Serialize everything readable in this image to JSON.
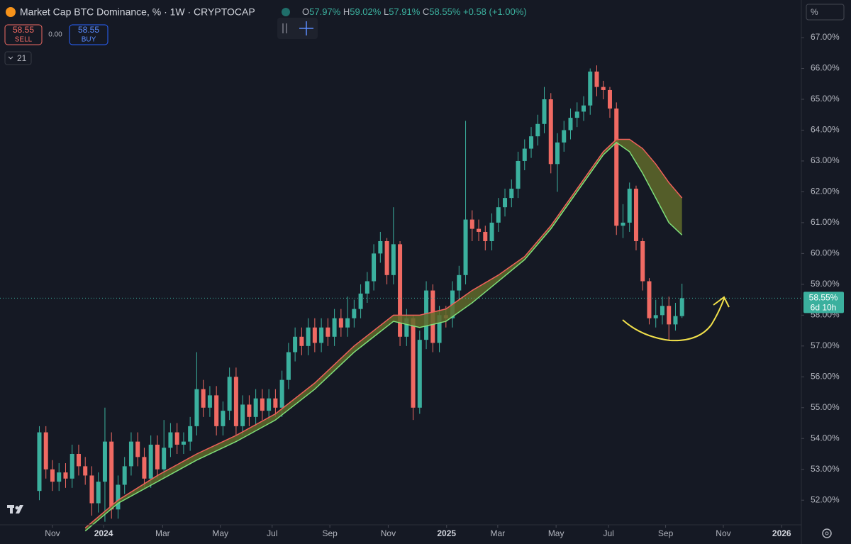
{
  "header": {
    "title": "Market Cap BTC Dominance, % · 1W · CRYPTOCAP",
    "ohlc_letters": [
      "O",
      "H",
      "L",
      "C"
    ],
    "ohlc_values": [
      "57.97%",
      "59.02%",
      "57.91%",
      "58.55%"
    ],
    "change": "+0.58 (+1.00%)"
  },
  "trade": {
    "sell_price": "58.55",
    "sell": "SELL",
    "spread": "0.00",
    "buy_price": "58.55",
    "buy": "BUY"
  },
  "indicator": "21",
  "price_axis_unit": "%",
  "price_label": "58.55%",
  "countdown": "6d 10h",
  "chart_data": {
    "type": "candlestick",
    "up_color": "#3bb09e",
    "down_color": "#f06a63",
    "open": [
      52.3,
      54.2,
      53.0,
      52.6,
      52.9,
      52.7,
      53.5,
      53.1,
      52.8,
      51.9,
      52.6,
      53.9,
      51.7,
      52.5,
      53.1,
      53.9,
      53.4,
      52.7,
      53.8,
      53.0,
      53.7,
      54.2,
      53.8,
      53.9,
      54.4,
      55.6,
      55.0,
      55.4,
      54.4,
      54.9,
      56.0,
      54.4,
      55.1,
      54.7,
      55.3,
      54.9,
      55.3,
      55.0,
      55.9,
      56.8,
      57.3,
      57.0,
      57.6,
      57.1,
      57.6,
      57.3,
      57.9,
      57.6,
      57.9,
      58.2,
      58.7,
      59.1,
      60.0,
      60.4,
      59.3,
      60.3,
      57.3,
      57.9,
      55.0,
      57.2,
      58.8,
      57.1,
      58.0,
      57.9,
      58.8,
      59.3,
      61.1,
      60.8,
      60.7,
      60.4,
      61.0,
      61.5,
      61.8,
      62.1,
      63.0,
      63.4,
      63.8,
      64.2,
      65.0,
      62.9,
      63.6,
      64.0,
      64.4,
      64.6,
      64.8,
      65.9,
      65.4,
      65.3,
      64.7,
      60.9,
      61.0,
      62.1,
      60.4,
      59.1,
      57.9,
      58.0,
      58.3,
      57.7,
      57.97
    ],
    "high": [
      54.4,
      54.4,
      53.3,
      53.2,
      53.2,
      53.8,
      53.8,
      53.4,
      53.1,
      52.9,
      55.0,
      54.2,
      52.8,
      53.4,
      54.2,
      54.2,
      53.7,
      54.1,
      54.1,
      54.6,
      54.5,
      54.5,
      54.2,
      54.7,
      56.8,
      55.9,
      55.7,
      55.7,
      55.2,
      56.3,
      56.3,
      55.4,
      55.4,
      55.6,
      55.6,
      55.6,
      55.6,
      56.2,
      57.1,
      57.6,
      57.6,
      57.9,
      57.9,
      57.9,
      57.9,
      58.2,
      58.2,
      58.6,
      58.5,
      59.0,
      59.4,
      60.3,
      60.7,
      60.5,
      61.5,
      60.4,
      58.2,
      58.0,
      57.5,
      59.1,
      59.0,
      58.3,
      58.3,
      59.1,
      59.6,
      64.3,
      61.4,
      61.1,
      60.9,
      61.3,
      61.8,
      62.1,
      62.4,
      63.3,
      63.7,
      64.1,
      64.5,
      65.4,
      65.2,
      63.9,
      64.3,
      64.7,
      64.9,
      65.1,
      66.0,
      66.1,
      65.6,
      65.4,
      64.9,
      61.6,
      62.3,
      62.2,
      60.5,
      59.2,
      58.5,
      58.6,
      58.6,
      58.4,
      59.02
    ],
    "low": [
      52.0,
      52.7,
      52.3,
      52.3,
      52.4,
      52.4,
      52.8,
      52.5,
      51.5,
      51.6,
      51.3,
      51.4,
      51.4,
      52.2,
      52.8,
      53.1,
      52.4,
      52.4,
      52.7,
      52.7,
      53.4,
      53.5,
      53.5,
      53.6,
      54.1,
      54.7,
      54.7,
      54.1,
      54.1,
      54.6,
      54.1,
      54.1,
      54.4,
      54.4,
      54.6,
      54.6,
      54.7,
      54.7,
      55.6,
      56.5,
      56.7,
      56.7,
      56.8,
      56.8,
      57.0,
      57.0,
      57.3,
      57.3,
      57.6,
      57.9,
      58.4,
      58.8,
      59.7,
      59.0,
      59.0,
      57.0,
      57.0,
      54.6,
      54.8,
      56.9,
      56.8,
      56.8,
      57.6,
      57.6,
      58.5,
      59.0,
      60.4,
      60.4,
      60.1,
      60.1,
      60.7,
      61.2,
      61.5,
      61.8,
      62.7,
      63.1,
      63.5,
      63.9,
      62.6,
      62.0,
      63.3,
      63.7,
      64.1,
      64.3,
      64.5,
      65.1,
      65.0,
      64.4,
      60.6,
      60.5,
      60.7,
      60.1,
      58.8,
      57.7,
      57.6,
      57.7,
      57.2,
      57.5,
      57.91
    ],
    "close": [
      54.2,
      53.0,
      52.6,
      52.9,
      52.7,
      53.5,
      53.1,
      52.8,
      51.9,
      52.6,
      53.9,
      51.7,
      52.5,
      53.1,
      53.9,
      53.4,
      52.7,
      53.8,
      53.0,
      53.7,
      54.2,
      53.8,
      53.9,
      54.4,
      55.6,
      55.0,
      55.4,
      54.4,
      54.9,
      56.0,
      54.4,
      55.1,
      54.7,
      55.3,
      54.9,
      55.3,
      55.0,
      55.9,
      56.8,
      57.3,
      57.0,
      57.6,
      57.1,
      57.6,
      57.3,
      57.9,
      57.6,
      57.9,
      58.2,
      58.7,
      59.1,
      60.0,
      60.4,
      59.3,
      60.3,
      57.3,
      57.9,
      55.0,
      57.2,
      58.8,
      57.1,
      58.0,
      57.9,
      58.8,
      59.3,
      61.1,
      60.8,
      60.7,
      60.4,
      61.0,
      61.5,
      61.8,
      62.1,
      63.0,
      63.4,
      63.8,
      64.2,
      65.0,
      62.9,
      63.6,
      64.0,
      64.4,
      64.6,
      64.8,
      65.9,
      65.4,
      65.3,
      64.7,
      60.9,
      61.0,
      62.1,
      60.4,
      59.1,
      57.9,
      58.0,
      58.3,
      57.7,
      57.97,
      58.55
    ],
    "overlays": [
      {
        "color": "#7ee07a",
        "x": [
          7,
          12,
          18,
          24,
          30,
          36,
          42,
          48,
          54,
          58,
          62,
          66,
          70,
          74,
          78,
          82,
          86,
          88,
          90,
          92,
          94,
          96,
          98
        ],
        "values": [
          51.0,
          51.9,
          52.6,
          53.3,
          53.9,
          54.6,
          55.6,
          56.8,
          57.8,
          57.6,
          57.8,
          58.4,
          59.1,
          59.8,
          60.8,
          62.0,
          63.2,
          63.6,
          63.3,
          62.6,
          61.8,
          61.0,
          60.6
        ]
      },
      {
        "color": "#f0605a",
        "x": [
          7,
          12,
          18,
          24,
          30,
          36,
          42,
          48,
          54,
          58,
          62,
          66,
          70,
          74,
          78,
          82,
          86,
          88,
          90,
          92,
          94,
          96,
          98
        ],
        "values": [
          51.1,
          52.0,
          52.8,
          53.5,
          54.1,
          54.8,
          55.8,
          57.0,
          58.0,
          58.0,
          58.2,
          58.8,
          59.3,
          59.9,
          60.9,
          62.1,
          63.3,
          63.7,
          63.7,
          63.4,
          62.9,
          62.3,
          61.8
        ]
      }
    ],
    "overlay_fill": "#5f6a2a",
    "xlim": [
      -6,
      116.2
    ],
    "xticks": [
      {
        "value": 2,
        "label": "Nov"
      },
      {
        "value": 9.8,
        "label": "2024"
      },
      {
        "value": 18.8,
        "label": "Mar"
      },
      {
        "value": 27.6,
        "label": "May"
      },
      {
        "value": 35.5,
        "label": "Jul"
      },
      {
        "value": 44.3,
        "label": "Sep"
      },
      {
        "value": 53.2,
        "label": "Nov"
      },
      {
        "value": 62.1,
        "label": "2025"
      },
      {
        "value": 69.9,
        "label": "Mar"
      },
      {
        "value": 78.8,
        "label": "May"
      },
      {
        "value": 86.8,
        "label": "Jul"
      },
      {
        "value": 95.5,
        "label": "Sep"
      },
      {
        "value": 104.3,
        "label": "Nov"
      },
      {
        "value": 113.2,
        "label": "2026"
      }
    ],
    "ylim": [
      51.2,
      68.22
    ],
    "yticks": [
      {
        "value": 52,
        "label": "52.00%"
      },
      {
        "value": 53,
        "label": "53.00%"
      },
      {
        "value": 54,
        "label": "54.00%"
      },
      {
        "value": 55,
        "label": "55.00%"
      },
      {
        "value": 56,
        "label": "56.00%"
      },
      {
        "value": 57,
        "label": "57.00%"
      },
      {
        "value": 58,
        "label": "58.00%"
      },
      {
        "value": 59,
        "label": "59.00%"
      },
      {
        "value": 60,
        "label": "60.00%"
      },
      {
        "value": 61,
        "label": "61.00%"
      },
      {
        "value": 62,
        "label": "62.00%"
      },
      {
        "value": 63,
        "label": "63.00%"
      },
      {
        "value": 64,
        "label": "64.00%"
      },
      {
        "value": 65,
        "label": "65.00%"
      },
      {
        "value": 66,
        "label": "66.00%"
      },
      {
        "value": 67,
        "label": "67.00%"
      }
    ],
    "grid": false
  }
}
